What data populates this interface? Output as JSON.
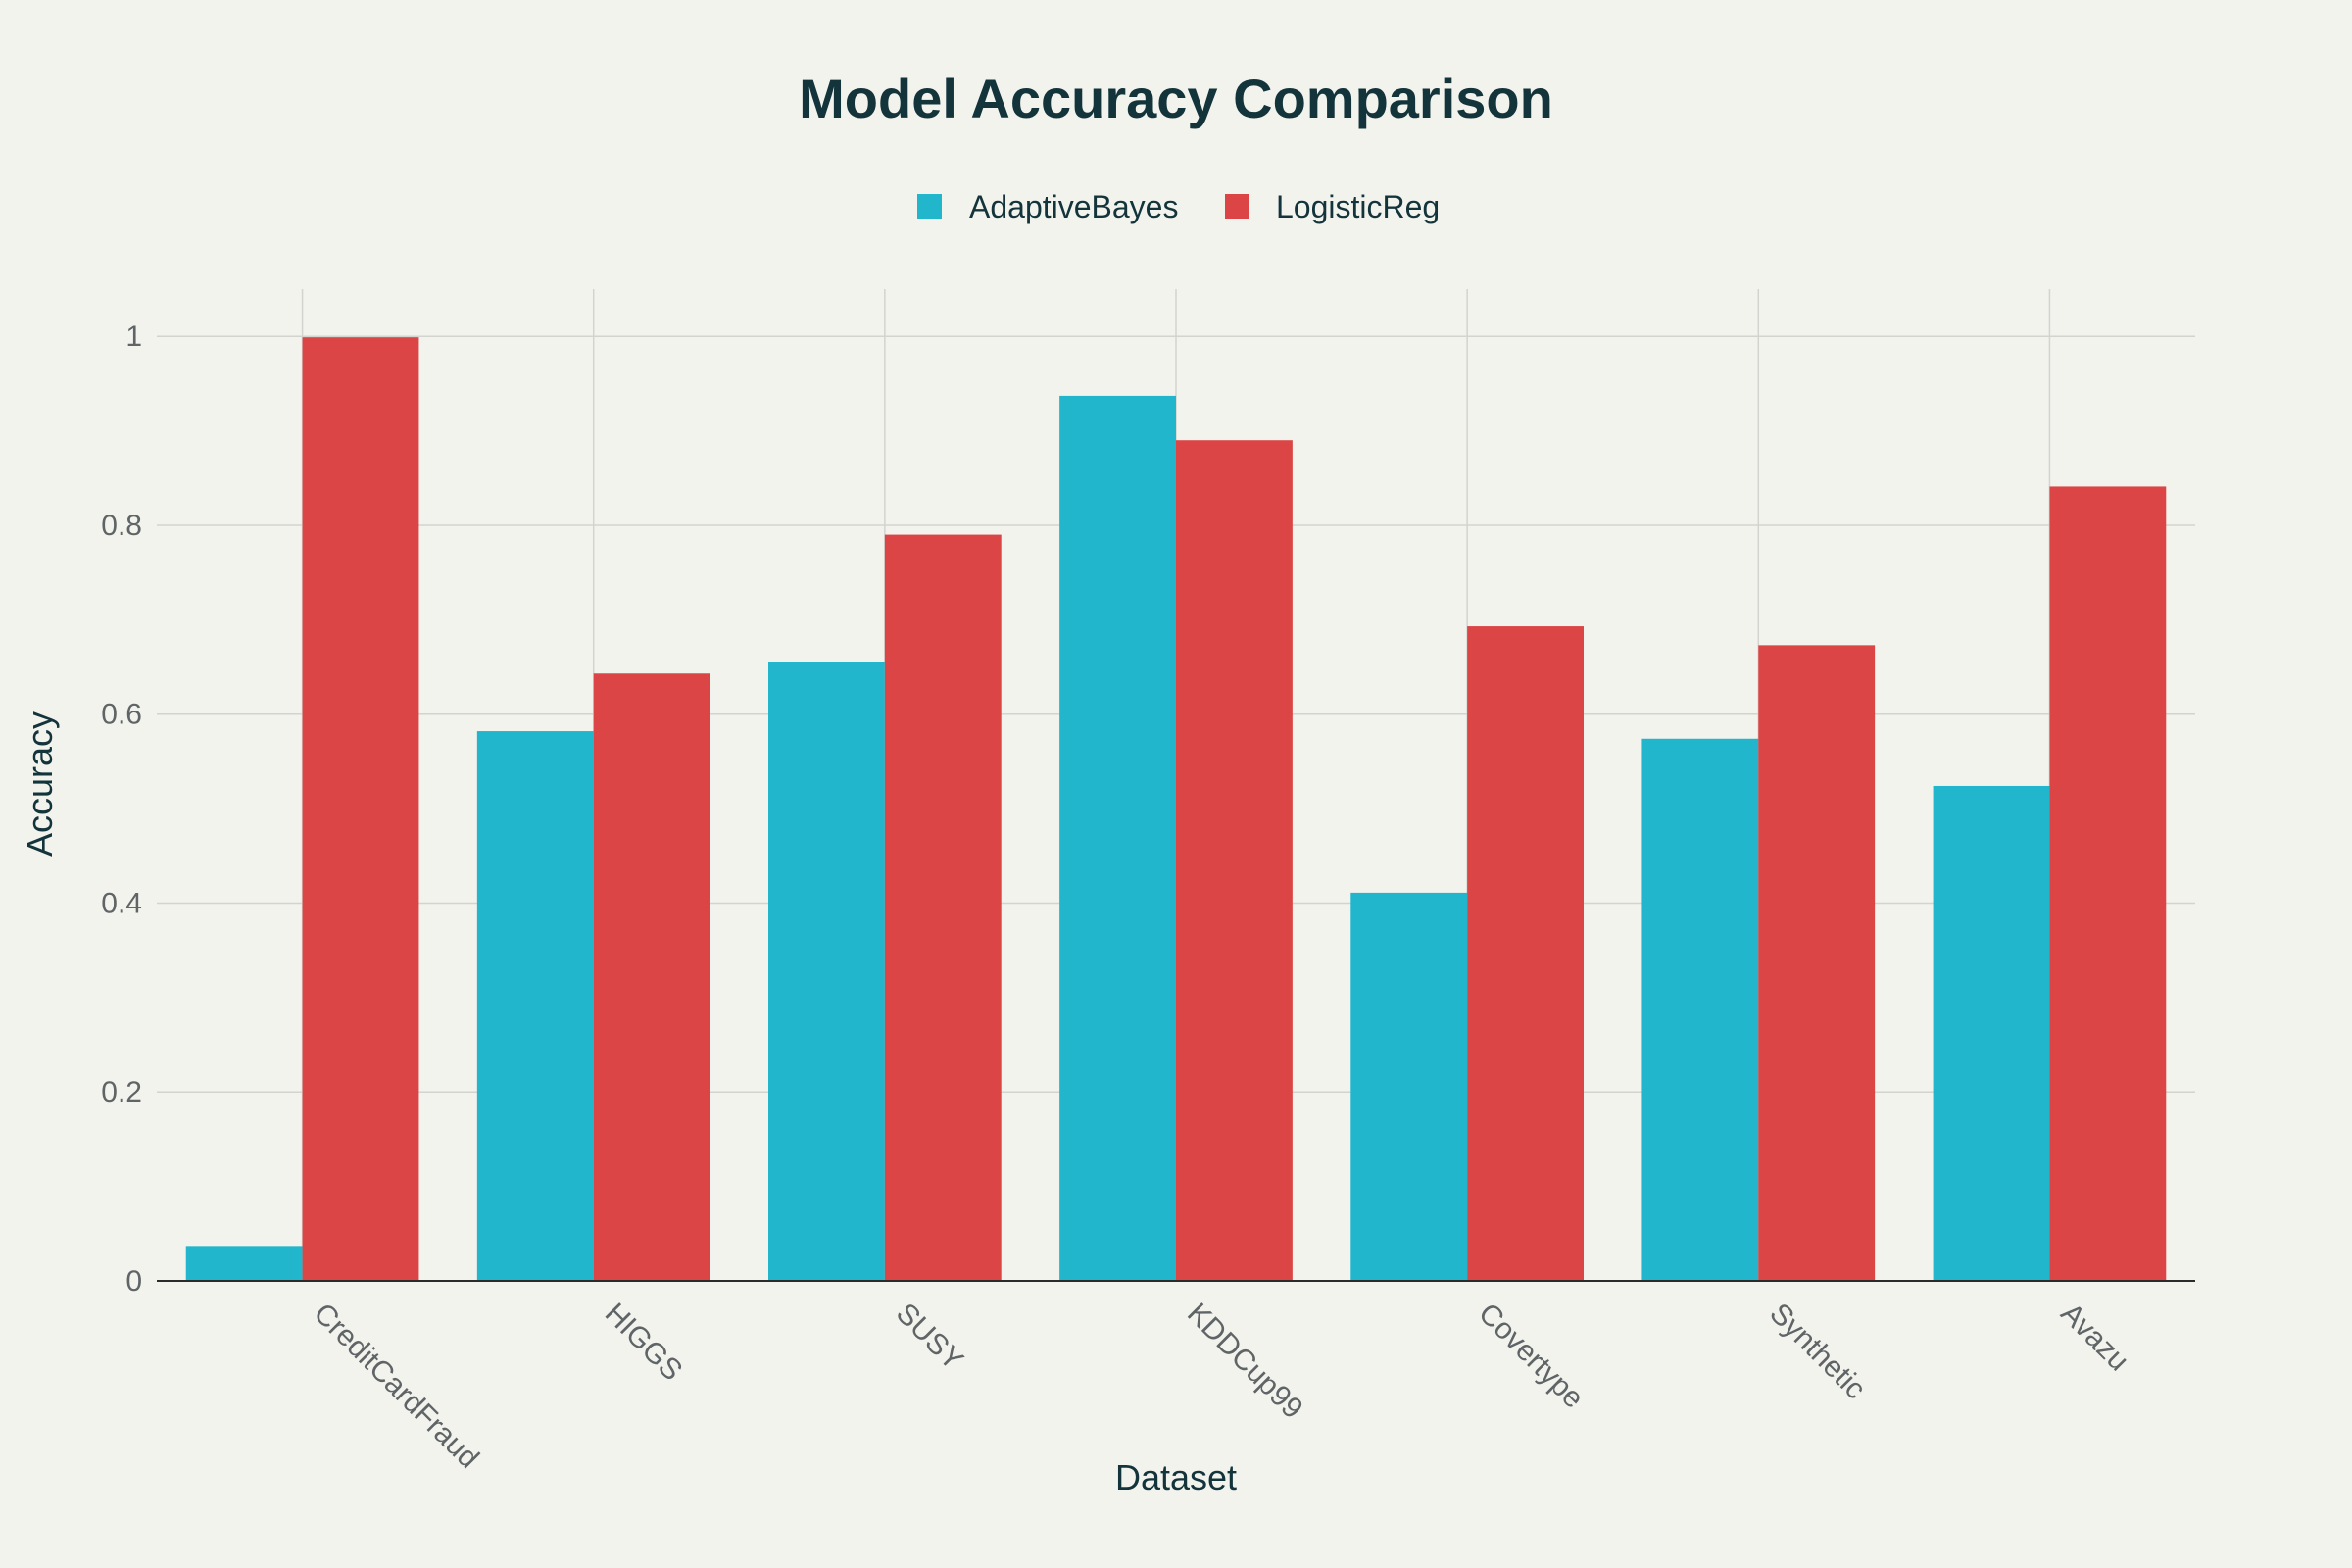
{
  "chart_data": {
    "type": "bar",
    "title": "Model Accuracy Comparison",
    "xlabel": "Dataset",
    "ylabel": "Accuracy",
    "categories": [
      "CreditCardFraud",
      "HIGGS",
      "SUSY",
      "KDDCup99",
      "Covertype",
      "Synthetic",
      "Avazu"
    ],
    "series": [
      {
        "name": "AdaptiveBayes",
        "color": "#21b6cc",
        "values": [
          0.037,
          0.582,
          0.655,
          0.937,
          0.411,
          0.574,
          0.524
        ]
      },
      {
        "name": "LogisticReg",
        "color": "#db4545",
        "values": [
          0.999,
          0.643,
          0.79,
          0.89,
          0.693,
          0.673,
          0.841
        ]
      }
    ],
    "ylim": [
      0,
      1.05
    ],
    "yticks": [
      0,
      0.2,
      0.4,
      0.6,
      0.8,
      1
    ],
    "ytick_labels": [
      "0",
      "0.2",
      "0.4",
      "0.6",
      "0.8",
      "1"
    ],
    "grid": true,
    "legend_position": "top-center"
  }
}
